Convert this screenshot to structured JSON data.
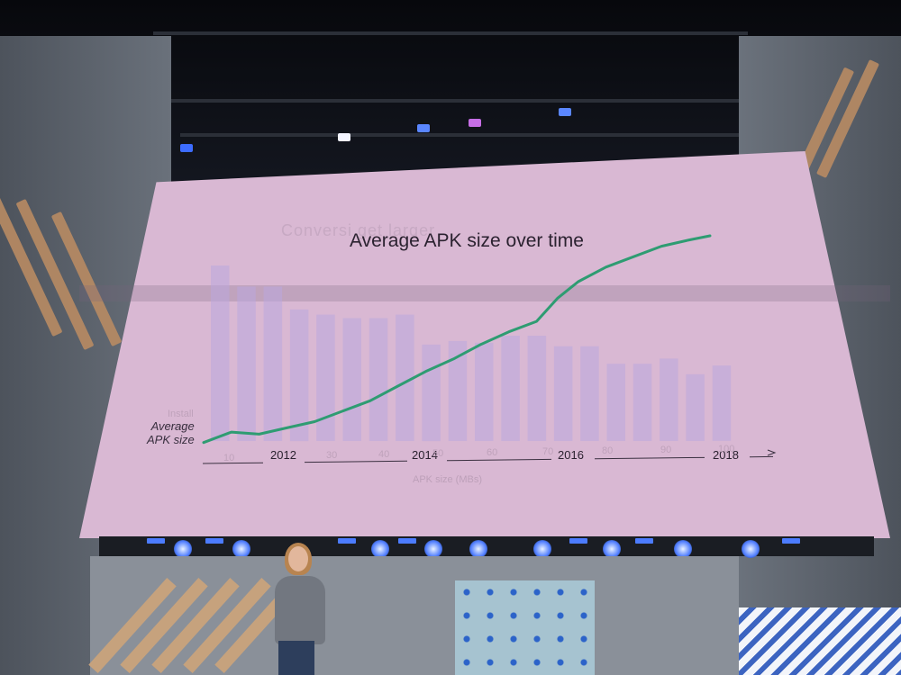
{
  "screen": {
    "title": "Average APK size over time",
    "ghost_title": "Conversi                                      get larger",
    "ghost_labels": [
      "Install",
      "conv"
    ],
    "y_label_line1": "Average",
    "y_label_line2": "APK size",
    "ghost_x_label": "APK size (MBs)",
    "year_ticks": [
      "2012",
      "2014",
      "2016",
      "2018"
    ],
    "ghost_ticks": [
      "10",
      "30",
      "40",
      "50",
      "60",
      "70",
      "80",
      "90",
      "100"
    ]
  },
  "chart_data": {
    "type": "line",
    "title": "Average APK size over time",
    "xlabel": "",
    "ylabel": "Average APK size",
    "x_ticks": [
      "2012",
      "2014",
      "2016",
      "2018"
    ],
    "series": [
      {
        "color": "#2e9c72",
        "points": [
          [
            2011.0,
            1
          ],
          [
            2011.4,
            6
          ],
          [
            2011.8,
            5
          ],
          [
            2012.2,
            8
          ],
          [
            2012.6,
            11
          ],
          [
            2013.0,
            16
          ],
          [
            2013.4,
            21
          ],
          [
            2013.8,
            28
          ],
          [
            2014.2,
            35
          ],
          [
            2014.6,
            41
          ],
          [
            2015.0,
            48
          ],
          [
            2015.4,
            54
          ],
          [
            2015.8,
            59
          ],
          [
            2016.1,
            70
          ],
          [
            2016.4,
            78
          ],
          [
            2016.8,
            85
          ],
          [
            2017.2,
            90
          ],
          [
            2017.6,
            95
          ],
          [
            2018.0,
            98
          ],
          [
            2018.3,
            100
          ]
        ]
      }
    ],
    "ghost_bars": {
      "color": "#b9a8df",
      "values": [
        100,
        88,
        88,
        75,
        72,
        70,
        70,
        72,
        55,
        57,
        56,
        60,
        60,
        54,
        54,
        44,
        44,
        47,
        38,
        43
      ]
    }
  },
  "colors": {
    "screen_background": "#d9b8d3",
    "line": "#2e9c72",
    "ghost_bars": "#b9a8df"
  }
}
